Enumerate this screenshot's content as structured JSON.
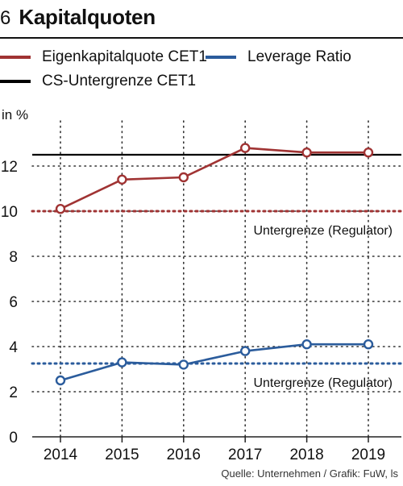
{
  "header": {
    "number": "6",
    "title": "Kapitalquoten"
  },
  "colors": {
    "cet1": "#a03333",
    "leverage": "#2b5c9c",
    "threshold": "#000000",
    "grid": "#333333"
  },
  "chart_data": {
    "type": "line",
    "title": "Kapitalquoten",
    "ylabel": "in %",
    "xlabel": "",
    "categories": [
      "2014",
      "2015",
      "2016",
      "2017",
      "2018",
      "2019"
    ],
    "ylim": [
      0,
      14
    ],
    "yticks": [
      "0",
      "2",
      "4",
      "6",
      "8",
      "10",
      "12"
    ],
    "series": [
      {
        "name": "Eigenkapitalquote CET1",
        "color": "#a03333",
        "values": [
          10.1,
          11.4,
          11.5,
          12.8,
          12.6,
          12.6
        ]
      },
      {
        "name": "Leverage Ratio",
        "color": "#2b5c9c",
        "values": [
          2.5,
          3.3,
          3.2,
          3.8,
          4.1,
          4.1
        ]
      }
    ],
    "reference_lines": [
      {
        "name": "CS-Untergrenze CET1",
        "value": 12.5,
        "style": "solid",
        "color": "#000000",
        "label": ""
      },
      {
        "name": "",
        "value": 10.0,
        "style": "dotted",
        "color": "#a03333",
        "label": "Untergrenze (Regulator)"
      },
      {
        "name": "",
        "value": 3.25,
        "style": "dotted",
        "color": "#2b5c9c",
        "label": "Untergrenze (Regulator)"
      }
    ],
    "legend": [
      {
        "label": "Eigenkapitalquote CET1",
        "color": "#a03333"
      },
      {
        "label": "Leverage Ratio",
        "color": "#2b5c9c"
      },
      {
        "label": "CS-Untergrenze CET1",
        "color": "#000000"
      }
    ],
    "grid": true,
    "legend_position": "top-left"
  },
  "source": "Quelle: Unternehmen / Grafik: FuW, ls"
}
